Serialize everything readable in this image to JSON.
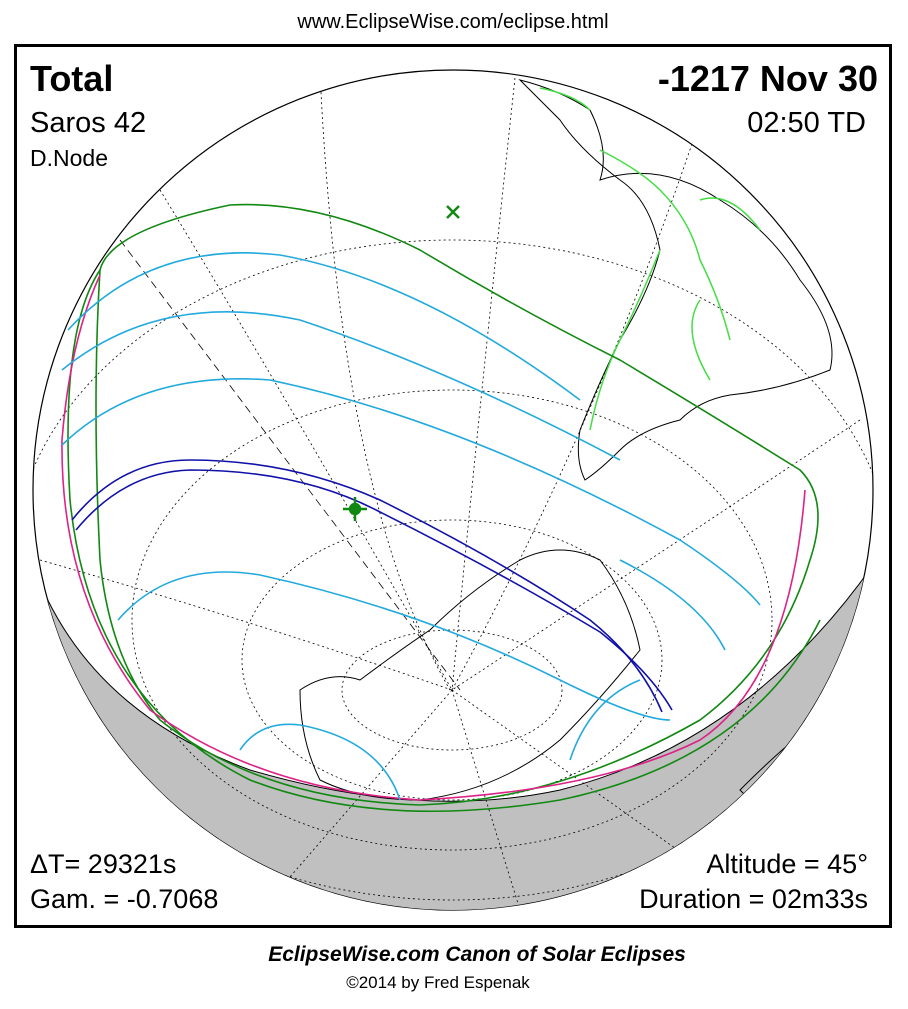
{
  "header": {
    "url": "www.EclipseWise.com/eclipse.html"
  },
  "eclipse": {
    "type": "Total",
    "date": "-1217 Nov 30",
    "saros": "Saros  42",
    "time": "02:50 TD",
    "node": "D.Node",
    "delta_t": "ΔT=  29321s",
    "gamma": "Gam. = -0.7068",
    "altitude": "Altitude = 45°",
    "duration": "Duration = 02m33s"
  },
  "footer": {
    "title": "EclipseWise.com Canon of Solar Eclipses",
    "copyright": "©2014 by Fred Espenak"
  }
}
